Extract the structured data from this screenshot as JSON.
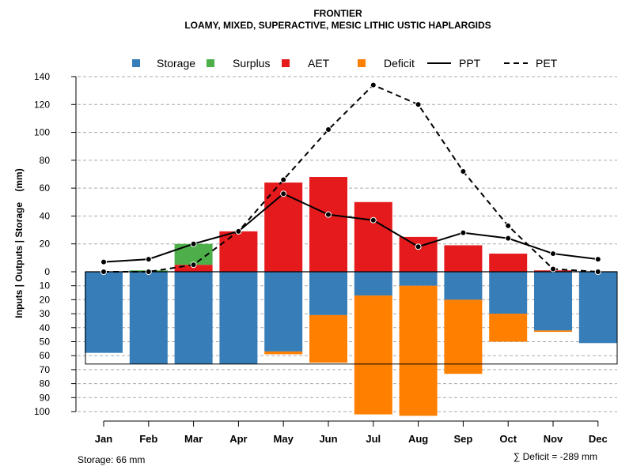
{
  "chart_data": {
    "type": "bar",
    "title": "FRONTIER",
    "subtitle": "LOAMY, MIXED, SUPERACTIVE, MESIC LITHIC USTIC HAPLARGIDS",
    "ylabel": "Inputs | Outputs | Storage    (mm)",
    "categories": [
      "Jan",
      "Feb",
      "Mar",
      "Apr",
      "May",
      "Jun",
      "Jul",
      "Aug",
      "Sep",
      "Oct",
      "Nov",
      "Dec"
    ],
    "y_upper_ticks": [
      0,
      20,
      40,
      60,
      80,
      100,
      120,
      140
    ],
    "y_lower_ticks": [
      10,
      20,
      30,
      40,
      50,
      60,
      70,
      80,
      90,
      100
    ],
    "y_upper_range": [
      0,
      140
    ],
    "y_lower_range": [
      0,
      100
    ],
    "legend": [
      {
        "key": "storage",
        "label": "Storage",
        "kind": "square",
        "color": "#377EB8"
      },
      {
        "key": "surplus",
        "label": "Surplus",
        "kind": "square",
        "color": "#4DAF4A"
      },
      {
        "key": "aet",
        "label": "AET",
        "kind": "square",
        "color": "#E41A1C"
      },
      {
        "key": "deficit",
        "label": "Deficit",
        "kind": "square",
        "color": "#FF7F00"
      },
      {
        "key": "ppt",
        "label": "PPT",
        "kind": "solid-line",
        "color": "#000000"
      },
      {
        "key": "pet",
        "label": "PET",
        "kind": "dashed-line",
        "color": "#000000"
      }
    ],
    "legend_position": "top",
    "grid": true,
    "series": [
      {
        "name": "AET",
        "values": [
          0,
          0,
          5,
          29,
          64,
          68,
          50,
          25,
          19,
          13,
          1,
          0
        ]
      },
      {
        "name": "Surplus",
        "values": [
          0,
          1,
          15,
          0,
          0,
          0,
          0,
          0,
          0,
          0,
          0,
          0
        ]
      },
      {
        "name": "Storage",
        "values": [
          58,
          66,
          66,
          66,
          57,
          31,
          17,
          10,
          20,
          30,
          42,
          51
        ]
      },
      {
        "name": "Deficit",
        "values": [
          0,
          0,
          0,
          0,
          2,
          34,
          85,
          93,
          53,
          20,
          1,
          0
        ]
      },
      {
        "name": "PPT",
        "values": [
          7,
          9,
          20,
          29,
          56,
          41,
          37,
          18,
          28,
          24,
          13,
          9
        ]
      },
      {
        "name": "PET",
        "values": [
          0,
          0,
          5,
          29,
          66,
          102,
          134,
          120,
          72,
          33,
          2,
          0
        ]
      }
    ],
    "storage_capacity": 66,
    "footer_left": "Storage: 66 mm",
    "footer_right": "∑ Deficit = -289 mm"
  }
}
